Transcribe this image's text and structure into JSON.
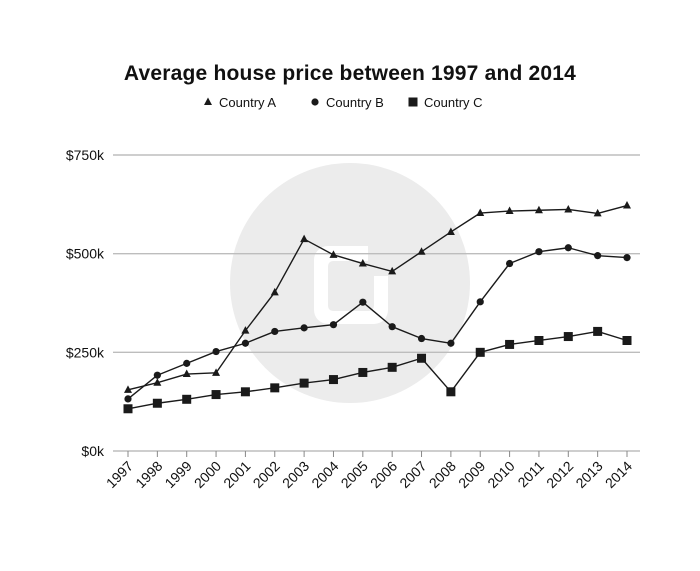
{
  "chart_data": {
    "type": "line",
    "title": "Average house price between 1997 and 2014",
    "xlabel": "",
    "ylabel": "",
    "categories": [
      "1997",
      "1998",
      "1999",
      "2000",
      "2001",
      "2002",
      "2003",
      "2004",
      "2005",
      "2006",
      "2007",
      "2008",
      "2009",
      "2010",
      "2011",
      "2012",
      "2013",
      "2014"
    ],
    "ylim": [
      0,
      750
    ],
    "yticks": [
      0,
      250,
      500,
      750
    ],
    "ytick_labels": [
      "$0k",
      "$250k",
      "$500k",
      "$750k"
    ],
    "grid": "horizontal",
    "legend_position": "top",
    "series": [
      {
        "name": "Country A",
        "marker": "triangle",
        "values": [
          155,
          173,
          195,
          198,
          305,
          402,
          537,
          497,
          475,
          455,
          505,
          555,
          603,
          608,
          610,
          612,
          602,
          622
        ]
      },
      {
        "name": "Country B",
        "marker": "circle",
        "values": [
          132,
          192,
          222,
          252,
          273,
          303,
          312,
          320,
          377,
          315,
          285,
          273,
          378,
          475,
          505,
          515,
          495,
          490
        ]
      },
      {
        "name": "Country C",
        "marker": "square",
        "values": [
          107,
          121,
          131,
          143,
          150,
          160,
          172,
          181,
          199,
          212,
          235,
          150,
          250,
          270,
          280,
          290,
          303,
          280
        ]
      }
    ],
    "colors": {
      "line": "#1a1a1a",
      "grid": "#bdbdbd",
      "watermark": "#ececec"
    }
  }
}
